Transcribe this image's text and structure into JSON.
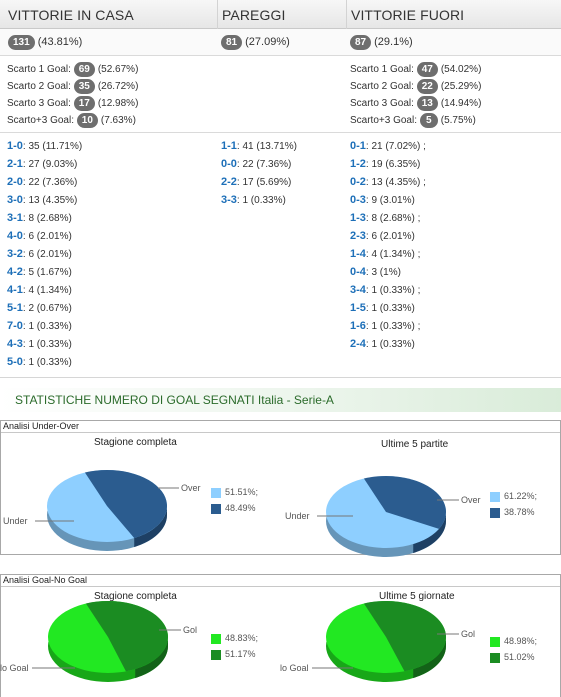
{
  "results": {
    "headers": {
      "home": "VITTORIE IN CASA",
      "draw": "PAREGGI",
      "away": "VITTORIE FUORI"
    },
    "totals": {
      "home": {
        "count": "131",
        "pct": "(43.81%)"
      },
      "draw": {
        "count": "81",
        "pct": "(27.09%)"
      },
      "away": {
        "count": "87",
        "pct": "(29.1%)"
      }
    },
    "scarto_home": [
      {
        "label": "Scarto 1 Goal:",
        "count": "69",
        "pct": "(52.67%)"
      },
      {
        "label": "Scarto 2 Goal:",
        "count": "35",
        "pct": "(26.72%)"
      },
      {
        "label": "Scarto 3 Goal:",
        "count": "17",
        "pct": "(12.98%)"
      },
      {
        "label": "Scarto+3 Goal:",
        "count": "10",
        "pct": "(7.63%)"
      }
    ],
    "scarto_away": [
      {
        "label": "Scarto 1 Goal:",
        "count": "47",
        "pct": "(54.02%)"
      },
      {
        "label": "Scarto 2 Goal:",
        "count": "22",
        "pct": "(25.29%)"
      },
      {
        "label": "Scarto 3 Goal:",
        "count": "13",
        "pct": "(14.94%)"
      },
      {
        "label": "Scarto+3 Goal:",
        "count": "5",
        "pct": "(5.75%)"
      }
    ],
    "scores_home": [
      {
        "score": "1-0",
        "text": ": 35 (11.71%)"
      },
      {
        "score": "2-1",
        "text": ": 27 (9.03%)"
      },
      {
        "score": "2-0",
        "text": ": 22 (7.36%)"
      },
      {
        "score": "3-0",
        "text": ": 13 (4.35%)"
      },
      {
        "score": "3-1",
        "text": ": 8 (2.68%)"
      },
      {
        "score": "4-0",
        "text": ": 6 (2.01%)"
      },
      {
        "score": "3-2",
        "text": ": 6 (2.01%)"
      },
      {
        "score": "4-2",
        "text": ": 5 (1.67%)"
      },
      {
        "score": "4-1",
        "text": ": 4 (1.34%)"
      },
      {
        "score": "5-1",
        "text": ": 2 (0.67%)"
      },
      {
        "score": "7-0",
        "text": ": 1 (0.33%)"
      },
      {
        "score": "4-3",
        "text": ": 1 (0.33%)"
      },
      {
        "score": "5-0",
        "text": ": 1 (0.33%)"
      }
    ],
    "scores_draw": [
      {
        "score": "1-1",
        "text": ": 41 (13.71%)"
      },
      {
        "score": "0-0",
        "text": ": 22 (7.36%)"
      },
      {
        "score": "2-2",
        "text": ": 17 (5.69%)"
      },
      {
        "score": "3-3",
        "text": ": 1 (0.33%)"
      }
    ],
    "scores_away": [
      {
        "score": "0-1",
        "text": ": 21 (7.02%) ;"
      },
      {
        "score": "1-2",
        "text": ": 19 (6.35%)"
      },
      {
        "score": "0-2",
        "text": ": 13 (4.35%) ;"
      },
      {
        "score": "0-3",
        "text": ": 9 (3.01%)"
      },
      {
        "score": "1-3",
        "text": ": 8 (2.68%) ;"
      },
      {
        "score": "2-3",
        "text": ": 6 (2.01%)"
      },
      {
        "score": "1-4",
        "text": ": 4 (1.34%) ;"
      },
      {
        "score": "0-4",
        "text": ": 3 (1%)"
      },
      {
        "score": "3-4",
        "text": ": 1 (0.33%) ;"
      },
      {
        "score": "1-5",
        "text": ": 1 (0.33%)"
      },
      {
        "score": "1-6",
        "text": ": 1 (0.33%) ;"
      },
      {
        "score": "2-4",
        "text": ": 1 (0.33%)"
      }
    ]
  },
  "section_title": "STATISTICHE NUMERO DI GOAL SEGNATI Italia - Serie-A",
  "panels": [
    {
      "title": "Analisi Under-Over"
    },
    {
      "title": "Analisi Goal-No Goal"
    }
  ],
  "colors": {
    "under": "#8ecfff",
    "over": "#2b5c8f",
    "nogoal": "#22e822",
    "goal": "#1b8c22",
    "score_blue": "#1d6fb8",
    "pill": "#6e6e6e"
  },
  "chart_data": [
    {
      "type": "pie",
      "panel": "Analisi Under-Over",
      "title": "Stagione completa",
      "slices": [
        {
          "name": "Under",
          "value": 51.51,
          "legend": "51.51%;"
        },
        {
          "name": "Over",
          "value": 48.49,
          "legend": "48.49%"
        }
      ]
    },
    {
      "type": "pie",
      "panel": "Analisi Under-Over",
      "title": "Ultime 5 partite",
      "slices": [
        {
          "name": "Under",
          "value": 61.22,
          "legend": "61.22%;"
        },
        {
          "name": "Over",
          "value": 38.78,
          "legend": "38.78%"
        }
      ]
    },
    {
      "type": "pie",
      "panel": "Analisi Goal-No Goal",
      "title": "Stagione completa",
      "slices": [
        {
          "name": "No Goal",
          "label": "lo Goal",
          "value": 48.83,
          "legend": "48.83%;"
        },
        {
          "name": "Goal",
          "label": "Gol",
          "value": 51.17,
          "legend": "51.17%"
        }
      ]
    },
    {
      "type": "pie",
      "panel": "Analisi Goal-No Goal",
      "title": "Ultime 5 giornate",
      "slices": [
        {
          "name": "No Goal",
          "label": "lo Goal",
          "value": 48.98,
          "legend": "48.98%;"
        },
        {
          "name": "Goal",
          "label": "Gol",
          "value": 51.02,
          "legend": "51.02%"
        }
      ]
    }
  ]
}
